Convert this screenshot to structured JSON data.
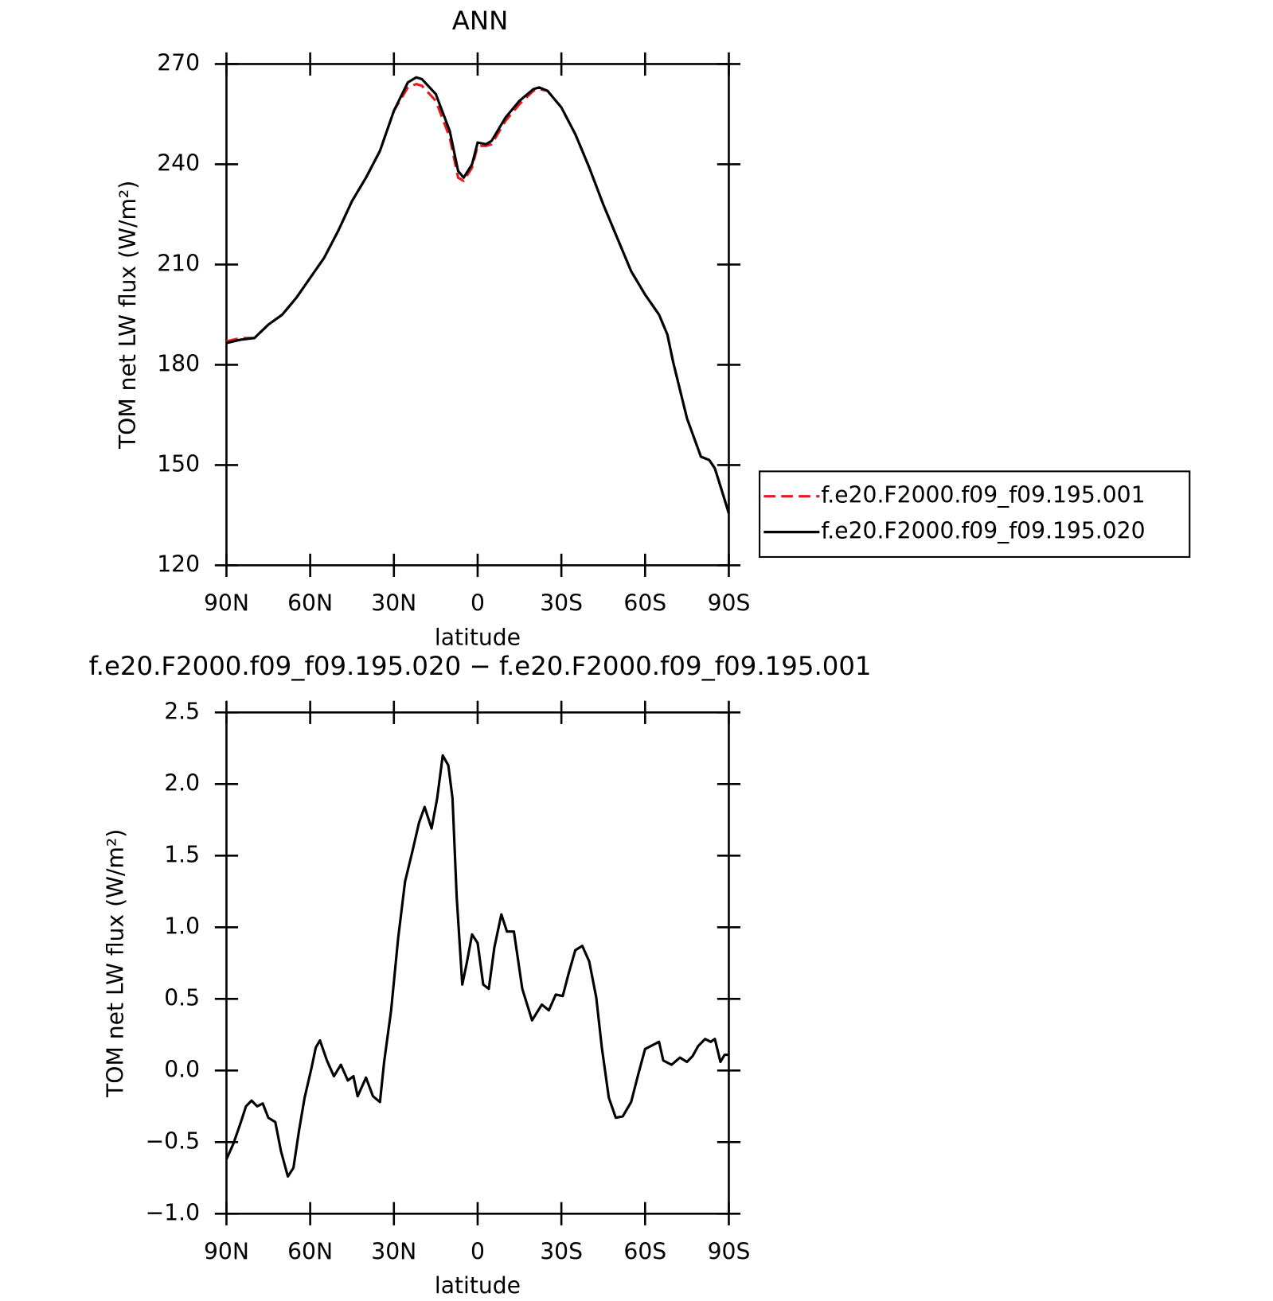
{
  "chart_data": [
    {
      "type": "line",
      "title": "ANN",
      "x_label": "latitude",
      "y_label": "TOM net LW flux (W/m²)",
      "x": [
        90,
        85,
        80,
        75,
        70,
        65,
        60,
        55,
        50,
        45,
        40,
        35,
        30,
        25,
        22,
        20,
        15,
        10,
        7,
        5,
        2,
        0,
        -3,
        -5,
        -10,
        -15,
        -20,
        -22,
        -25,
        -30,
        -35,
        -40,
        -45,
        -50,
        -55,
        -60,
        -65,
        -68,
        -70,
        -75,
        -80,
        -83,
        -85,
        -88,
        -90
      ],
      "series": [
        {
          "name": "f.e20.F2000.f09_f09.195.001",
          "color": "#e41a1c",
          "dash": true,
          "values": [
            187,
            188,
            188,
            192,
            195,
            200,
            206,
            212,
            220,
            229,
            236,
            244,
            256,
            263,
            264,
            263.5,
            259,
            248,
            236,
            235,
            239,
            245.5,
            245.5,
            246,
            253,
            258,
            262,
            262.5,
            262,
            257,
            249,
            239,
            228,
            218,
            208,
            201,
            195,
            189,
            181,
            164,
            152.5,
            151.5,
            149,
            141,
            135.5
          ]
        },
        {
          "name": "f.e20.F2000.f09_f09.195.020",
          "color": "#000000",
          "dash": false,
          "values": [
            186.5,
            187.5,
            188,
            192,
            195,
            200,
            206,
            212,
            220,
            229,
            236,
            244,
            256,
            264.5,
            266,
            265.5,
            261,
            250,
            238,
            236,
            240,
            246.5,
            246,
            247,
            254,
            259,
            262.5,
            263,
            262,
            257,
            249,
            239,
            228,
            218,
            208,
            201,
            195,
            189,
            181,
            164,
            152.5,
            151.5,
            149,
            141,
            135.5
          ]
        }
      ],
      "xlim": [
        90,
        -90
      ],
      "xticks": [
        {
          "value": 90,
          "label": "90N"
        },
        {
          "value": 60,
          "label": "60N"
        },
        {
          "value": 30,
          "label": "30N"
        },
        0,
        {
          "value": -30,
          "label": "30S"
        },
        {
          "value": -60,
          "label": "60S"
        },
        {
          "value": -90,
          "label": "90S"
        }
      ],
      "ylim": [
        120,
        270
      ],
      "yticks": [
        120,
        150,
        180,
        210,
        240,
        270
      ],
      "legend": "right"
    },
    {
      "type": "line",
      "title": "f.e20.F2000.f09_f09.195.020 − f.e20.F2000.f09_f09.195.001",
      "x_label": "latitude",
      "y_label": "TOM net LW flux (W/m²)",
      "x": [
        90,
        87.5,
        85,
        83,
        81,
        79,
        77,
        75,
        72.5,
        70.5,
        68,
        66,
        64,
        62,
        59.5,
        58,
        56.5,
        54,
        51.5,
        49,
        46.5,
        44.5,
        43,
        40,
        37.5,
        35,
        33.5,
        31,
        28.5,
        26,
        23.5,
        21,
        19,
        16.5,
        14.5,
        12.5,
        10.5,
        9,
        7.5,
        5.5,
        4,
        2,
        0,
        -2,
        -4,
        -6,
        -8.5,
        -10.5,
        -13,
        -16,
        -19.5,
        -23,
        -25.5,
        -28,
        -30.5,
        -32.5,
        -35,
        -37.5,
        -40,
        -42.5,
        -44.5,
        -47,
        -49.5,
        -52,
        -55,
        -57.5,
        -60,
        -63,
        -65,
        -66.5,
        -69.5,
        -72.5,
        -75,
        -77,
        -79,
        -81.5,
        -83.5,
        -85,
        -87,
        -88.5,
        -90
      ],
      "values": [
        -0.62,
        -0.51,
        -0.37,
        -0.25,
        -0.21,
        -0.25,
        -0.23,
        -0.33,
        -0.36,
        -0.56,
        -0.74,
        -0.68,
        -0.42,
        -0.19,
        0.02,
        0.16,
        0.21,
        0.07,
        -0.04,
        0.04,
        -0.07,
        -0.04,
        -0.18,
        -0.05,
        -0.18,
        -0.22,
        0.06,
        0.42,
        0.92,
        1.32,
        1.52,
        1.73,
        1.84,
        1.69,
        1.9,
        2.2,
        2.13,
        1.9,
        1.21,
        0.6,
        0.74,
        0.95,
        0.89,
        0.6,
        0.57,
        0.86,
        1.09,
        0.97,
        0.97,
        0.57,
        0.35,
        0.46,
        0.42,
        0.53,
        0.52,
        0.67,
        0.84,
        0.87,
        0.76,
        0.51,
        0.16,
        -0.19,
        -0.33,
        -0.32,
        -0.22,
        -0.03,
        0.15,
        0.18,
        0.2,
        0.07,
        0.04,
        0.09,
        0.06,
        0.1,
        0.17,
        0.22,
        0.2,
        0.22,
        0.06,
        0.11,
        0.11
      ],
      "color": "#000000",
      "xlim": [
        90,
        -90
      ],
      "xticks": [
        {
          "value": 90,
          "label": "90N"
        },
        {
          "value": 60,
          "label": "60N"
        },
        {
          "value": 30,
          "label": "30N"
        },
        0,
        {
          "value": -30,
          "label": "30S"
        },
        {
          "value": -60,
          "label": "60S"
        },
        {
          "value": -90,
          "label": "90S"
        }
      ],
      "ylim": [
        -1,
        2.5
      ],
      "yticks": [
        {
          "value": -1,
          "label": "−1.0"
        },
        {
          "value": -0.5,
          "label": "−0.5"
        },
        {
          "value": 0,
          "label": "0.0"
        },
        0.5,
        {
          "value": 1,
          "label": "1.0"
        },
        1.5,
        {
          "value": 2,
          "label": "2.0"
        },
        2.5
      ]
    }
  ]
}
